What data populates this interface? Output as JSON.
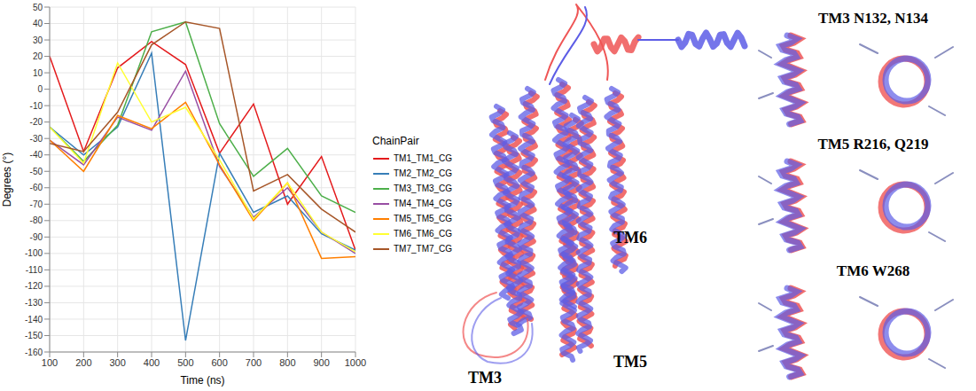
{
  "chart_data": {
    "type": "line",
    "xlabel": "Time (ns)",
    "ylabel": "Degrees (°)",
    "legend_title": "ChainPair",
    "legend": "right",
    "grid": true,
    "x": [
      100,
      200,
      300,
      400,
      500,
      600,
      700,
      800,
      900,
      1000
    ],
    "xlim": [
      100,
      1000
    ],
    "xticks": [
      100,
      200,
      300,
      400,
      500,
      600,
      700,
      800,
      900,
      1000
    ],
    "ylim": [
      -160,
      50
    ],
    "yticks": [
      -160,
      -150,
      -140,
      -130,
      -120,
      -110,
      -100,
      -90,
      -80,
      -70,
      -60,
      -50,
      -40,
      -30,
      -20,
      -10,
      0,
      10,
      20,
      30,
      40,
      50
    ],
    "series": [
      {
        "name": "TM1_TM1_CG",
        "color": "#e41a1c",
        "values": [
          20,
          -38,
          13,
          29,
          15,
          -39,
          -9,
          -70,
          -41,
          -98
        ]
      },
      {
        "name": "TM2_TM2_CG",
        "color": "#377eb8",
        "values": [
          -23,
          -40,
          -23,
          22,
          -153,
          -39,
          -75,
          -65,
          -88,
          -98
        ]
      },
      {
        "name": "TM3_TM3_CG",
        "color": "#4daf4a",
        "values": [
          -23,
          -44,
          -22,
          35,
          41,
          -21,
          -53,
          -36,
          -65,
          -75
        ]
      },
      {
        "name": "TM4_TM4_CG",
        "color": "#984ea3",
        "values": [
          -31,
          -46,
          -17,
          -25,
          11,
          -47,
          -78,
          -60,
          -87,
          -100
        ]
      },
      {
        "name": "TM5_TM5_CG",
        "color": "#ff7f00",
        "values": [
          -31,
          -50,
          -16,
          -24,
          -8,
          -46,
          -80,
          -57,
          -103,
          -102
        ]
      },
      {
        "name": "TM6_TM6_CG",
        "color": "#ffff33",
        "values": [
          -23,
          -45,
          16,
          -20,
          -11,
          -43,
          -79,
          -57,
          -87,
          -99
        ]
      },
      {
        "name": "TM7_TM7_CG",
        "color": "#a65628",
        "values": [
          -33,
          -38,
          -14,
          27,
          41,
          37,
          -62,
          -52,
          -73,
          -87
        ]
      }
    ]
  },
  "structure_panel": {
    "labels": [
      "TM6",
      "TM3",
      "TM5"
    ],
    "insets": [
      "TM3 N132, N134",
      "TM5 R216, Q219",
      "TM6 W268"
    ]
  }
}
